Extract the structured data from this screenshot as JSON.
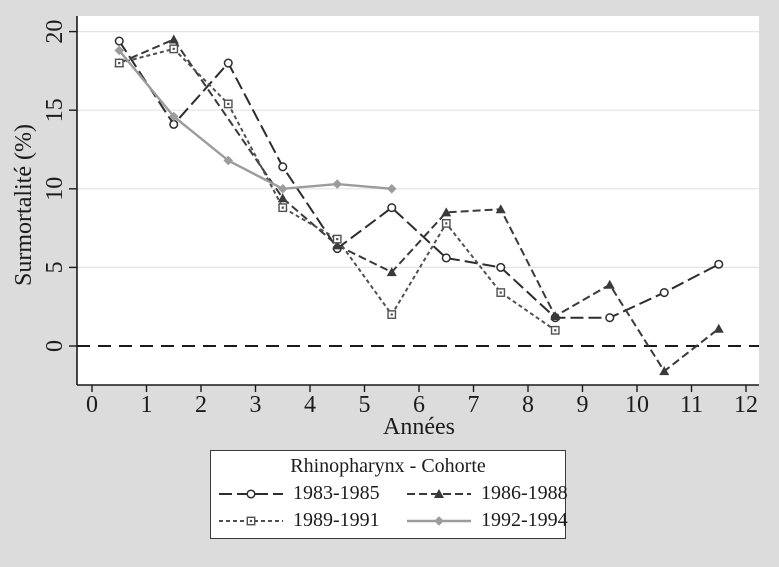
{
  "window": {
    "background_color": "#dcdcdc",
    "plot_background_color": "#ffffff"
  },
  "chart_data": {
    "type": "line",
    "title": "",
    "xlabel": "Années",
    "ylabel": "Surmortalité (%)",
    "x_ticks": [
      0,
      1,
      2,
      3,
      4,
      5,
      6,
      7,
      8,
      9,
      10,
      11,
      12
    ],
    "y_ticks": [
      0,
      5,
      10,
      15,
      20
    ],
    "xlim": [
      -0.3,
      12.3
    ],
    "ylim": [
      -2.5,
      21
    ],
    "grid": "horizontal-major",
    "gridline_color": "#e4e4e4",
    "axis_color": "#1a1a1a",
    "zero_line": {
      "y": 0,
      "style": "long-dash",
      "color": "#1a1a1a"
    },
    "x": [
      0.5,
      1.5,
      2.5,
      3.5,
      4.5,
      5.5,
      6.5,
      7.5,
      8.5,
      9.5,
      10.5,
      11.5
    ],
    "series": [
      {
        "name": "1983-1985",
        "marker": "circle-hollow",
        "line_style": "long-dash",
        "color": "#2d2d2d",
        "values": [
          19.4,
          14.1,
          18.0,
          11.4,
          6.2,
          8.8,
          5.6,
          5.0,
          1.8,
          1.8,
          3.4,
          5.2
        ]
      },
      {
        "name": "1986-1988",
        "marker": "triangle-filled",
        "line_style": "dash",
        "color": "#3a3a3a",
        "values": [
          18.0,
          19.5,
          null,
          9.4,
          6.4,
          4.7,
          8.5,
          8.7,
          1.9,
          3.9,
          -1.6,
          1.1
        ]
      },
      {
        "name": "1989-1991",
        "marker": "square-hollow",
        "line_style": "short-dash",
        "color": "#505050",
        "values": [
          18.0,
          18.9,
          15.4,
          8.8,
          6.8,
          2.0,
          7.8,
          3.4,
          1.0,
          null,
          null,
          null
        ]
      },
      {
        "name": "1992-1994",
        "marker": "diamond-filled",
        "line_style": "solid",
        "color": "#9c9c9c",
        "values": [
          18.8,
          14.6,
          11.8,
          10.0,
          10.3,
          10.0,
          null,
          null,
          null,
          null,
          null,
          null
        ]
      }
    ],
    "legend": {
      "title": "Rhinopharynx - Cohorte",
      "position": "bottom-center",
      "columns": 2
    }
  }
}
